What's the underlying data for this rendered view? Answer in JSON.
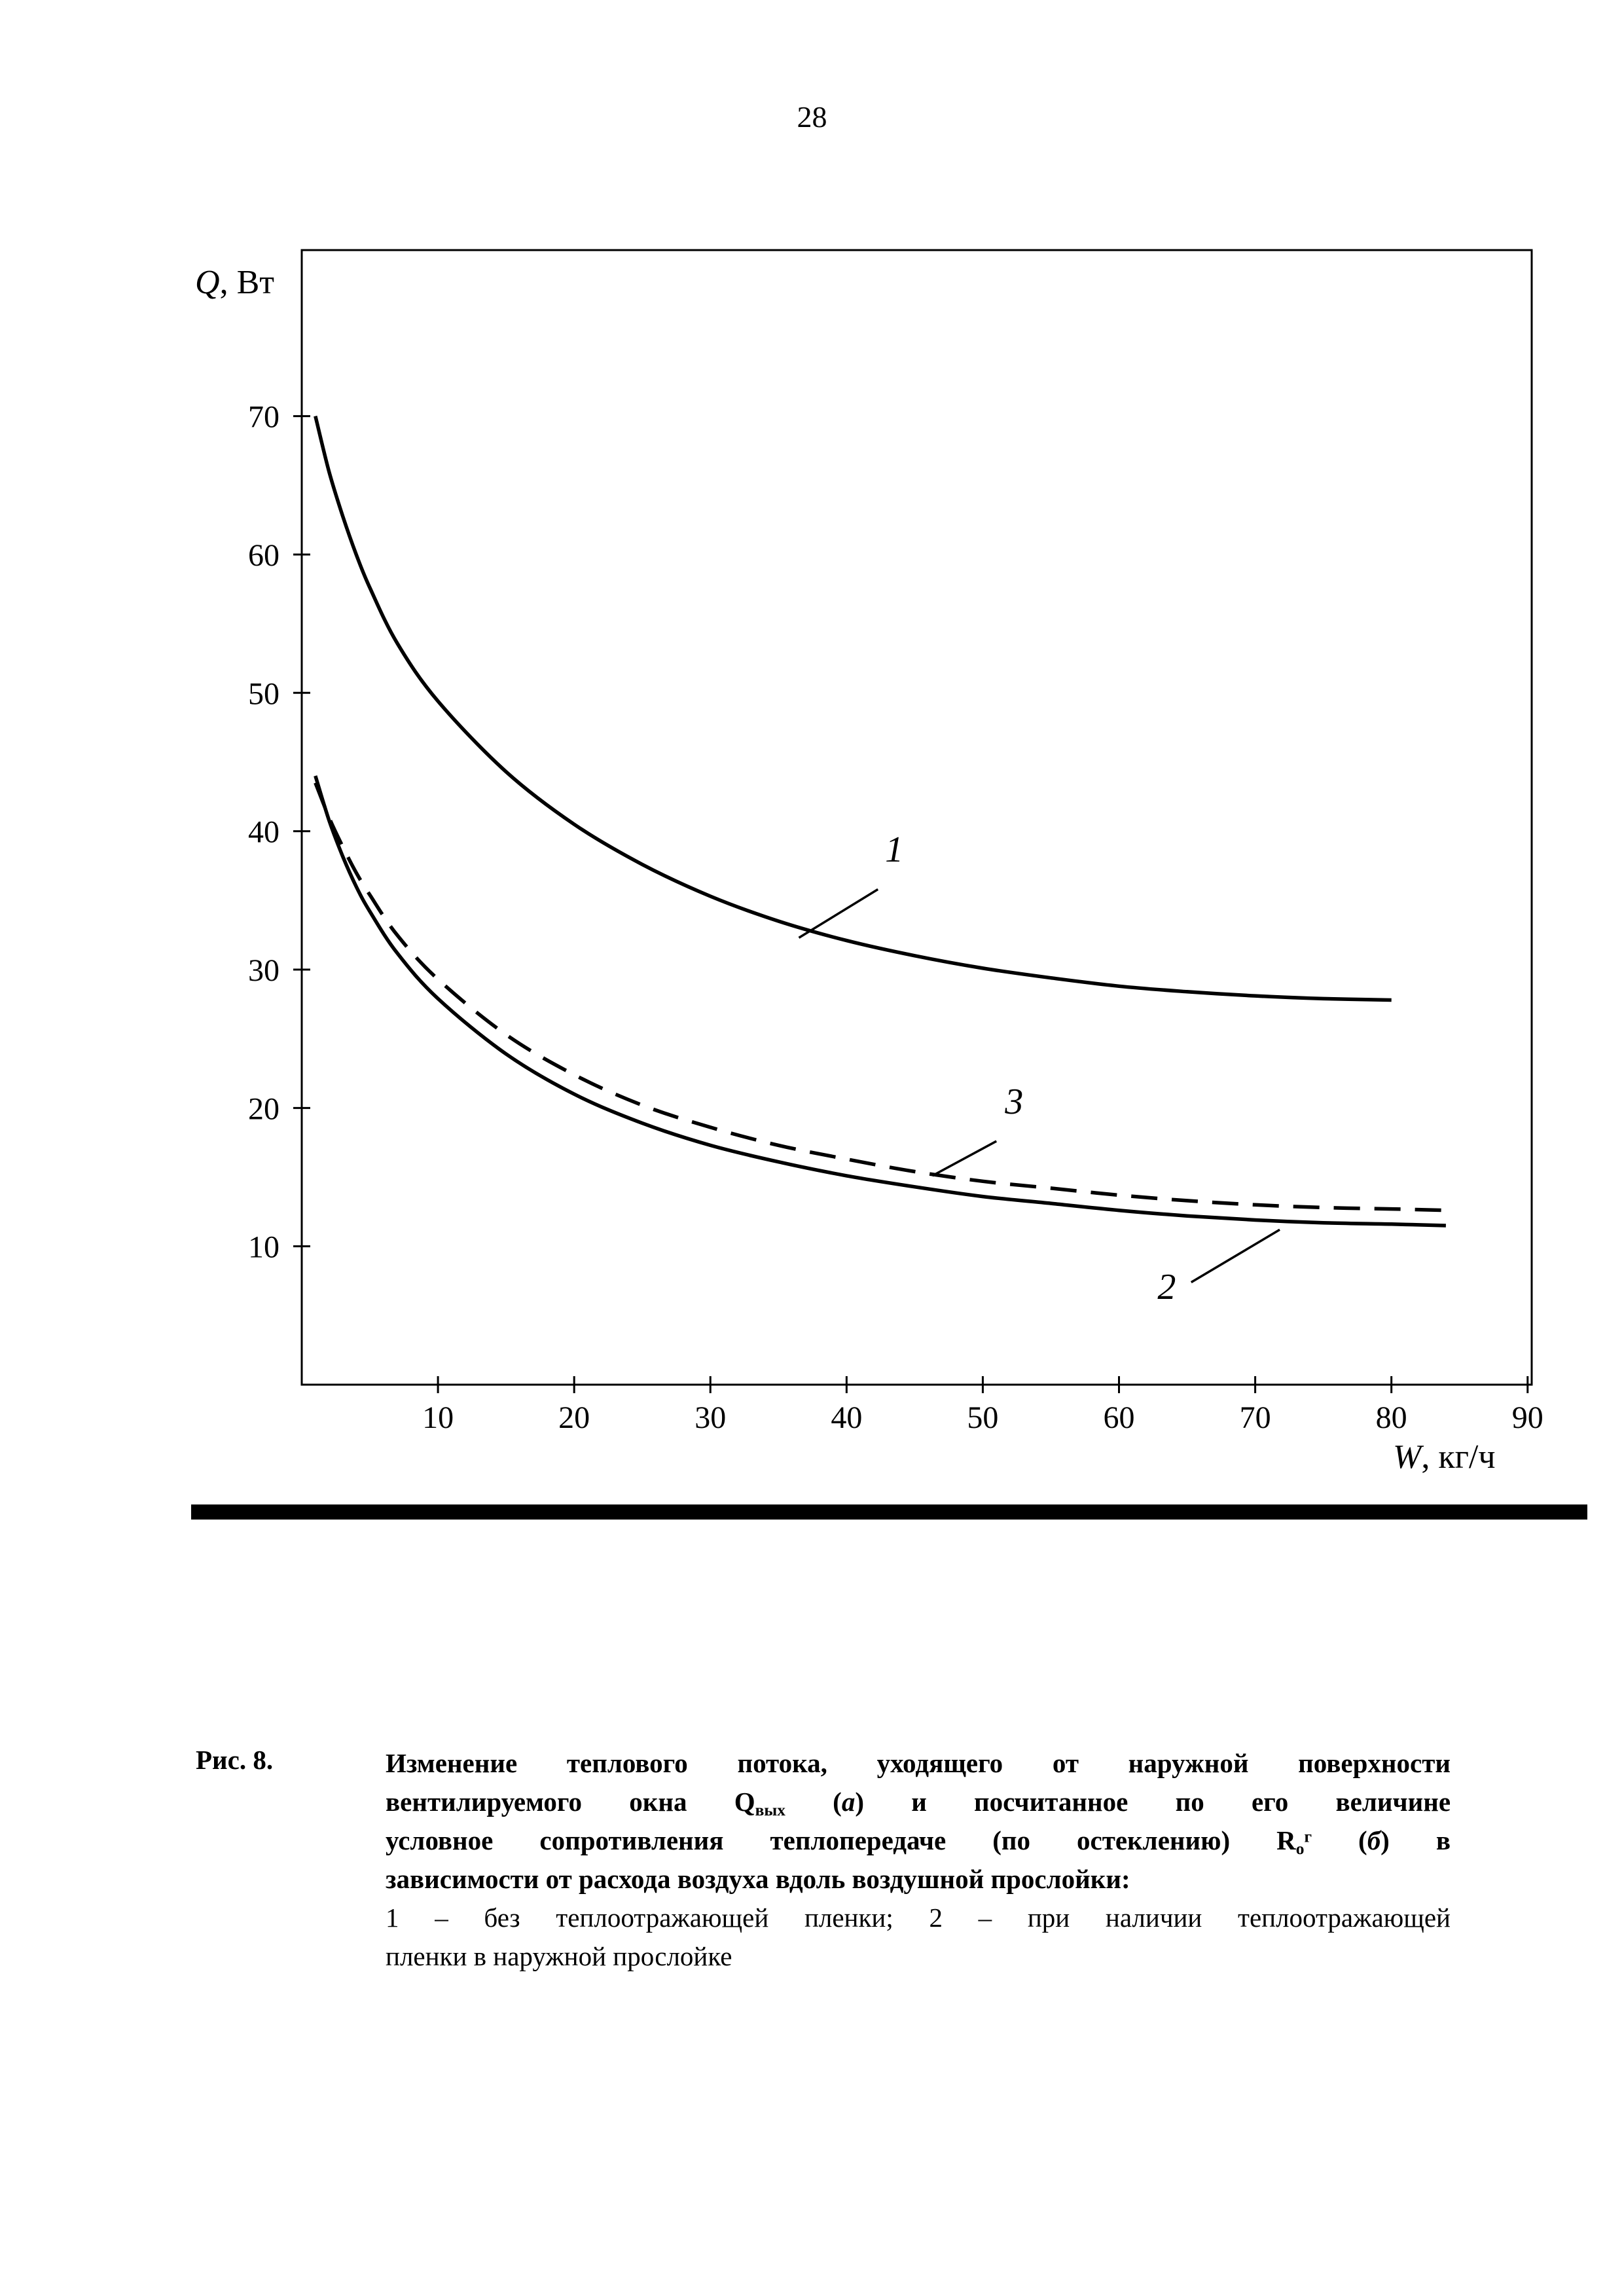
{
  "page": {
    "number": "28"
  },
  "chart_data": {
    "type": "line",
    "title": "",
    "xlabel": "W, кг/ч",
    "ylabel": "Q, Вт",
    "xlabel_segments": [
      {
        "t": "W",
        "s": "i"
      },
      {
        "t": ", кг/ч",
        "s": "n"
      }
    ],
    "ylabel_segments": [
      {
        "t": "Q",
        "s": "i"
      },
      {
        "t": ", Вт",
        "s": "n"
      }
    ],
    "xlim": [
      0,
      90.3
    ],
    "ylim": [
      0,
      82
    ],
    "x_ticks": [
      10,
      20,
      30,
      40,
      50,
      60,
      70,
      80,
      90
    ],
    "y_ticks": [
      10,
      20,
      30,
      40,
      50,
      60,
      70
    ],
    "grid": false,
    "legend": "none",
    "frame": true,
    "series": [
      {
        "name": "1",
        "style": "solid",
        "x": [
          1,
          2,
          3,
          4,
          5,
          7,
          10,
          15,
          20,
          25,
          30,
          35,
          40,
          45,
          50,
          55,
          60,
          65,
          70,
          75,
          80
        ],
        "y": [
          70,
          66,
          62.8,
          60,
          57.6,
          53.6,
          49.4,
          44.3,
          40.5,
          37.6,
          35.3,
          33.5,
          32.1,
          31,
          30.1,
          29.4,
          28.8,
          28.4,
          28.1,
          27.9,
          27.8
        ]
      },
      {
        "name": "2",
        "style": "solid",
        "x": [
          1,
          2,
          3,
          4,
          5,
          7,
          10,
          15,
          20,
          25,
          30,
          35,
          40,
          45,
          50,
          55,
          60,
          65,
          70,
          75,
          80,
          84
        ],
        "y": [
          44,
          40.8,
          38.2,
          36,
          34.2,
          31.2,
          27.9,
          23.9,
          21,
          18.9,
          17.3,
          16.1,
          15.1,
          14.3,
          13.6,
          13.1,
          12.6,
          12.2,
          11.9,
          11.7,
          11.6,
          11.5
        ]
      },
      {
        "name": "3",
        "style": "dashed",
        "x": [
          1,
          2,
          3,
          4,
          5,
          7,
          10,
          15,
          20,
          25,
          30,
          35,
          40,
          45,
          50,
          55,
          60,
          65,
          70,
          75,
          80,
          84
        ],
        "y": [
          43.5,
          41,
          38.9,
          37,
          35.4,
          32.5,
          29.3,
          25.3,
          22.4,
          20.2,
          18.6,
          17.3,
          16.3,
          15.4,
          14.7,
          14.2,
          13.7,
          13.3,
          13,
          12.8,
          12.7,
          12.6
        ]
      }
    ],
    "annotations": [
      {
        "text": "1",
        "x": 43.5,
        "y": 37.8,
        "line": [
          [
            42.3,
            35.8
          ],
          [
            36.5,
            32.3
          ]
        ]
      },
      {
        "text": "3",
        "x": 52.3,
        "y": 19.6,
        "line": [
          [
            51.0,
            17.6
          ],
          [
            46.3,
            15.1
          ]
        ]
      },
      {
        "text": "2",
        "x": 63.5,
        "y": 6.2,
        "line": [
          [
            65.3,
            7.4
          ],
          [
            71.8,
            11.2
          ]
        ]
      }
    ]
  },
  "caption": {
    "label": "Рис. 8.",
    "body_lines": [
      [
        {
          "t": "Изменение теплового потока, уходящего от наружной поверхности",
          "s": "b"
        }
      ],
      [
        {
          "t": "вентилируемого окна ",
          "s": "b"
        },
        {
          "t": "Q",
          "s": "b"
        },
        {
          "t": "вых",
          "s": "bsub"
        },
        {
          "t": " (",
          "s": "b"
        },
        {
          "t": "а",
          "s": "bi"
        },
        {
          "t": ") и посчитанное по его величине",
          "s": "b"
        }
      ],
      [
        {
          "t": "условное сопротивления теплопередаче (по остеклению) ",
          "s": "b"
        },
        {
          "t": "R",
          "s": "b"
        },
        {
          "t": "о",
          "s": "bsub"
        },
        {
          "t": "г",
          "s": "bsup"
        },
        {
          "t": " (",
          "s": "b"
        },
        {
          "t": "б",
          "s": "bi"
        },
        {
          "t": ") в",
          "s": "b"
        }
      ],
      [
        {
          "t": "зависимости от расхода воздуха вдоль воздушной прослойки:",
          "s": "b"
        }
      ]
    ],
    "note_lines": [
      [
        {
          "t": "1 – без теплоотражающей пленки;  2 – при наличии теплоотражающей",
          "s": "n"
        }
      ],
      [
        {
          "t": "пленки в наружной прослойке",
          "s": "n"
        }
      ]
    ]
  }
}
